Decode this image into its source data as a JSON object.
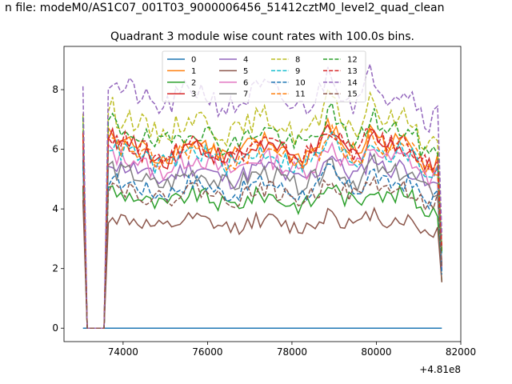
{
  "suptitle": "n file: modeM0/AS1C07_001T03_9000006456_51412cztM0_level2_quad_clean",
  "chart_data": {
    "type": "line",
    "title": "Quadrant 3 module wise count rates with 100.0s bins.",
    "xlabel": "",
    "ylabel": "",
    "x_offset_label": "+4.81e8",
    "xlim": [
      72600,
      82000
    ],
    "ylim": [
      -0.45,
      9.45
    ],
    "xticks": [
      74000,
      76000,
      78000,
      80000,
      82000
    ],
    "xtick_labels": [
      "74000",
      "76000",
      "78000",
      "80000",
      "82000"
    ],
    "yticks": [
      0,
      2,
      4,
      6,
      8
    ],
    "ytick_labels": [
      "0",
      "2",
      "4",
      "6",
      "8"
    ],
    "grid": false,
    "legend": {
      "placement": "upper-center",
      "columns": 4
    },
    "series": [
      {
        "name": "0",
        "color": "#1f77b4",
        "style": "solid",
        "base": 0.0
      },
      {
        "name": "1",
        "color": "#ff7f0e",
        "style": "solid",
        "base": 6.0
      },
      {
        "name": "2",
        "color": "#2ca02c",
        "style": "solid",
        "base": 4.3
      },
      {
        "name": "3",
        "color": "#d62728",
        "style": "solid",
        "base": 5.9
      },
      {
        "name": "4",
        "color": "#9467bd",
        "style": "solid",
        "base": 5.2
      },
      {
        "name": "5",
        "color": "#8c564b",
        "style": "solid",
        "base": 3.5
      },
      {
        "name": "6",
        "color": "#e377c2",
        "style": "solid",
        "base": 5.5
      },
      {
        "name": "7",
        "color": "#7f7f7f",
        "style": "solid",
        "base": 5.0
      },
      {
        "name": "8",
        "color": "#bcbd22",
        "style": "dashed",
        "base": 6.8
      },
      {
        "name": "9",
        "color": "#17becf",
        "style": "dashed",
        "base": 5.7
      },
      {
        "name": "10",
        "color": "#1f77b4",
        "style": "dashed",
        "base": 4.7
      },
      {
        "name": "11",
        "color": "#ff7f0e",
        "style": "dashed",
        "base": 5.8
      },
      {
        "name": "12",
        "color": "#2ca02c",
        "style": "dashed",
        "base": 6.4
      },
      {
        "name": "13",
        "color": "#d62728",
        "style": "dashed",
        "base": 6.0
      },
      {
        "name": "14",
        "color": "#9467bd",
        "style": "dashed",
        "base": 7.7
      },
      {
        "name": "15",
        "color": "#8c564b",
        "style": "dashed",
        "base": 4.5
      }
    ]
  }
}
